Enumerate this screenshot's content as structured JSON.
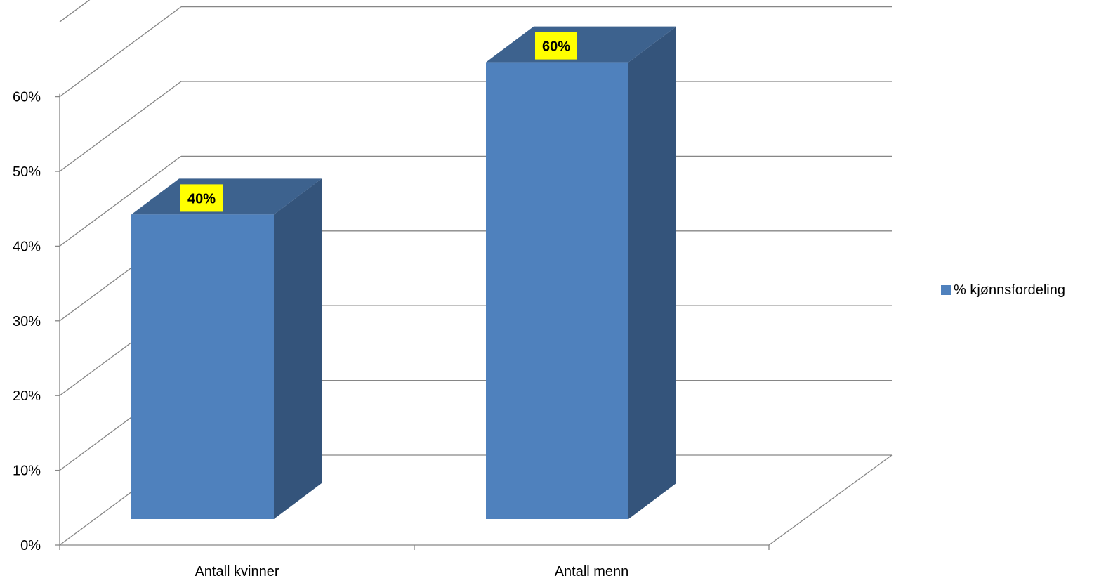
{
  "chart_data": {
    "type": "bar",
    "categories": [
      "Antall kvinner",
      "Antall menn"
    ],
    "series": [
      {
        "name": "% kjønnsfordeling",
        "values": [
          40,
          60
        ],
        "data_labels": [
          "40%",
          "60%"
        ],
        "color": "#4f81bd"
      }
    ],
    "y_ticks": [
      "0%",
      "10%",
      "20%",
      "30%",
      "40%",
      "50%",
      "60%"
    ],
    "ylim": [
      0,
      60
    ],
    "grid": true,
    "legend": "right",
    "style": "3d",
    "data_label_background": "#ffff00"
  }
}
